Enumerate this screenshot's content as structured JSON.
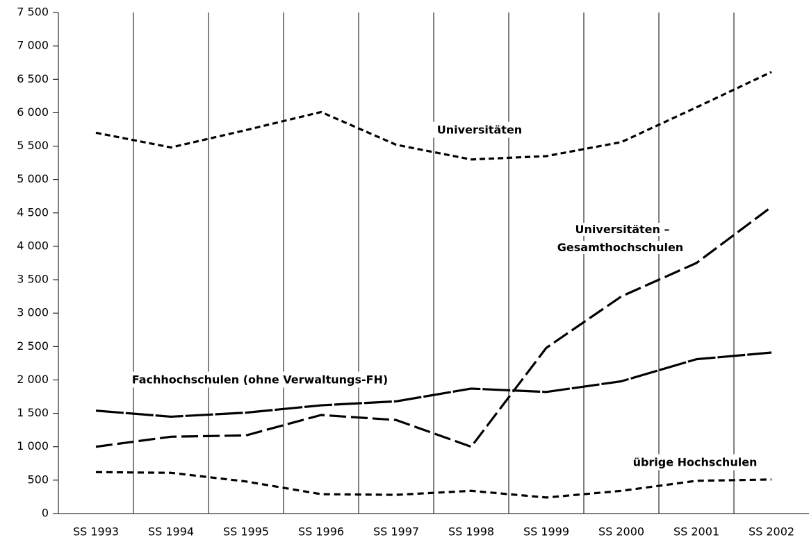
{
  "chart_data": {
    "type": "line",
    "categories": [
      "SS 1993",
      "SS 1994",
      "SS 1995",
      "SS 1996",
      "SS 1997",
      "SS 1998",
      "SS 1999",
      "SS 2000",
      "SS 2001",
      "SS 2002"
    ],
    "series": [
      {
        "name": "Universitäten",
        "color": "#000000",
        "dash": "8 5",
        "values": [
          5700,
          5480,
          5740,
          6010,
          5520,
          5300,
          5350,
          5560,
          6080,
          6610
        ]
      },
      {
        "name": "Universitäten – Gesamthochschulen",
        "color": "#000000",
        "dash": "24 7",
        "values": [
          1000,
          1150,
          1170,
          1475,
          1400,
          1000,
          2480,
          3250,
          3750,
          4590
        ]
      },
      {
        "name": "Fachhochschulen (ohne Verwaltungs-FH)",
        "color": "#000000",
        "dash": "40 3",
        "values": [
          1540,
          1450,
          1510,
          1620,
          1680,
          1870,
          1820,
          1980,
          2310,
          2410
        ]
      },
      {
        "name": "übrige Hochschulen",
        "color": "#000000",
        "dash": "9 6",
        "values": [
          620,
          610,
          480,
          290,
          280,
          340,
          240,
          340,
          490,
          510
        ]
      }
    ],
    "ylim": [
      0,
      7500
    ],
    "yticks": [
      0,
      500,
      {
        "value": 1000,
        "label": "1 000"
      },
      {
        "value": 1500,
        "label": "1 500"
      },
      {
        "value": 2000,
        "label": "2 000"
      },
      {
        "value": 2500,
        "label": "2 500"
      },
      {
        "value": 3000,
        "label": "3 000"
      },
      {
        "value": 3500,
        "label": "3 500"
      },
      {
        "value": 4000,
        "label": "4 000"
      },
      {
        "value": 4500,
        "label": "4 500"
      },
      {
        "value": 5000,
        "label": "5 000"
      },
      {
        "value": 5500,
        "label": "5 500"
      },
      {
        "value": 6000,
        "label": "6 000"
      },
      {
        "value": 6500,
        "label": "6 500"
      },
      {
        "value": 7000,
        "label": "7 000"
      },
      {
        "value": 7500,
        "label": "7 500"
      }
    ],
    "grid": true
  }
}
